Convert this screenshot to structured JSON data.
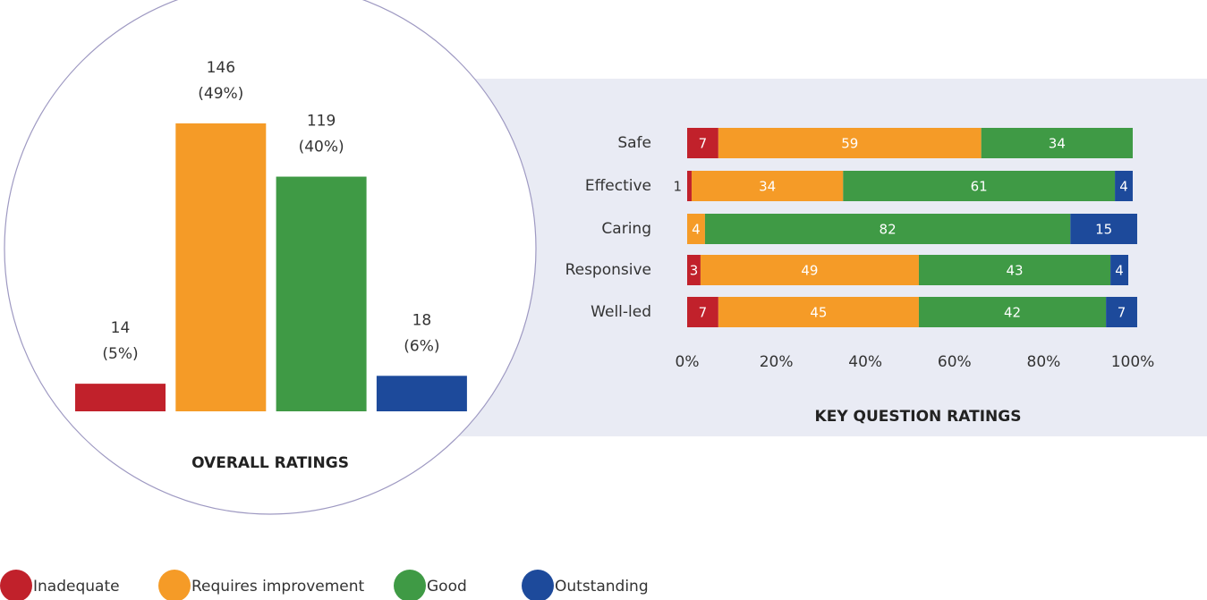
{
  "chart_data": [
    {
      "type": "bar",
      "title": "OVERALL RATINGS",
      "categories": [
        null,
        null,
        null,
        null
      ],
      "values": [
        14,
        146,
        119,
        18
      ],
      "percent_labels": [
        "(5%)",
        "(49%)",
        "(40%)",
        "(6%)"
      ],
      "colors": [
        "#c1212b",
        "#f59b27",
        "#3f9a45",
        "#1d4a9b"
      ]
    },
    {
      "type": "stacked-hbar",
      "title": "KEY QUESTION RATINGS",
      "categories": [
        "Safe",
        "Effective",
        "Caring",
        "Responsive",
        "Well-led"
      ],
      "series": [
        {
          "name": "Inadequate",
          "color": "#c1212b",
          "values": [
            7,
            1,
            null,
            3,
            7
          ]
        },
        {
          "name": "Requires improvement",
          "color": "#f59b27",
          "values": [
            59,
            34,
            4,
            49,
            45
          ]
        },
        {
          "name": "Good",
          "color": "#3f9a45",
          "values": [
            34,
            61,
            82,
            43,
            42
          ]
        },
        {
          "name": "Outstanding",
          "color": "#1d4a9b",
          "values": [
            null,
            4,
            15,
            4,
            7
          ]
        }
      ],
      "xlim": [
        0,
        100
      ],
      "xticks": [
        {
          "value": 0,
          "label": "0%"
        },
        {
          "value": 20,
          "label": "20%"
        },
        {
          "value": 40,
          "label": "40%"
        },
        {
          "value": 60,
          "label": "60%"
        },
        {
          "value": 80,
          "label": "80%"
        },
        {
          "value": 100,
          "label": "100%"
        }
      ],
      "legend": "bottom"
    }
  ]
}
